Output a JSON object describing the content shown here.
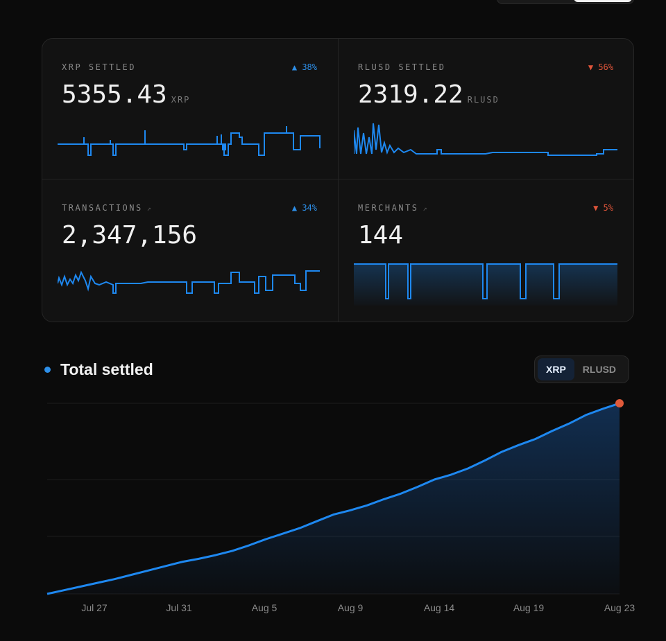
{
  "stats": [
    {
      "label": "XRP SETTLED",
      "extra": "",
      "delta": "▲ 38%",
      "direction": "up",
      "value": "5355.43",
      "unit": "XRP"
    },
    {
      "label": "RLUSD SETTLED",
      "extra": "",
      "delta": "▼ 56%",
      "direction": "down",
      "value": "2319.22",
      "unit": "RLUSD"
    },
    {
      "label": "TRANSACTIONS",
      "extra": "↗",
      "delta": "▲ 34%",
      "direction": "up",
      "value": "2,347,156",
      "unit": ""
    },
    {
      "label": "MERCHANTS",
      "extra": "↗",
      "delta": "▼ 5%",
      "direction": "down",
      "value": "144",
      "unit": ""
    }
  ],
  "section": {
    "title": "Total settled"
  },
  "toggle": {
    "options": [
      "XRP",
      "RLUSD"
    ],
    "selected": "XRP"
  },
  "chart_data": {
    "type": "area",
    "title": "Total settled",
    "x_ticks": [
      "Jul 27",
      "Jul 31",
      "Aug 5",
      "Aug 9",
      "Aug 14",
      "Aug 19",
      "Aug 23"
    ],
    "series": [
      {
        "values": [
          0,
          6,
          12,
          18,
          24,
          31,
          38,
          45,
          52,
          57,
          63,
          70,
          79,
          89,
          98,
          107,
          118,
          129,
          136,
          144,
          154,
          163,
          174,
          186,
          194,
          204,
          217,
          231,
          242,
          252,
          265,
          277,
          291,
          301,
          310
        ]
      }
    ],
    "grid": true,
    "colors": {
      "line": "#1e88f0",
      "end_marker": "#e05a3a"
    }
  },
  "colors": {
    "accent": "#2d8fe8",
    "up": "#2d8fe8",
    "down": "#e0553a",
    "background": "#0b0b0b"
  }
}
